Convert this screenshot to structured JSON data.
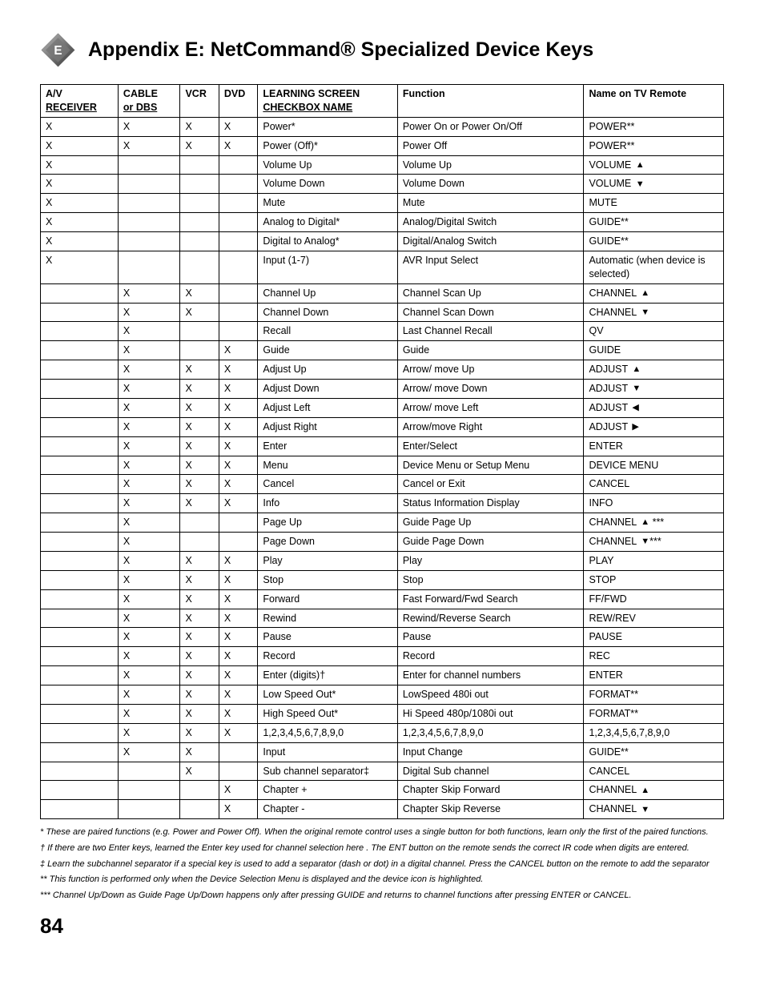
{
  "title": "Appendix E: NetCommand® Specialized Device Keys",
  "icon_letter": "E",
  "headers": {
    "av": "A/V",
    "receiver": "RECEIVER",
    "cable": "CABLE",
    "dbs": "or  DBS",
    "vcr": "VCR",
    "dvd": "DVD",
    "learn1": "LEARNING SCREEN",
    "learn2": "CHECKBOX NAME",
    "func": "Function",
    "remote": "Name on TV Remote"
  },
  "rows": [
    {
      "av": "X",
      "cable": "X",
      "vcr": "X",
      "dvd": "X",
      "learn": "Power*",
      "func": "Power On or Power On/Off",
      "remote": "POWER**"
    },
    {
      "av": "X",
      "cable": "X",
      "vcr": "X",
      "dvd": "X",
      "learn": "Power (Off)*",
      "func": "Power Off",
      "remote": "POWER**"
    },
    {
      "av": "X",
      "cable": "",
      "vcr": "",
      "dvd": "",
      "learn": "Volume Up",
      "func": "Volume Up",
      "remote": "VOLUME",
      "arrow": "up"
    },
    {
      "av": "X",
      "cable": "",
      "vcr": "",
      "dvd": "",
      "learn": "Volume Down",
      "func": "Volume Down",
      "remote": "VOLUME",
      "arrow": "down"
    },
    {
      "av": "X",
      "cable": "",
      "vcr": "",
      "dvd": "",
      "learn": "Mute",
      "func": "Mute",
      "remote": "MUTE"
    },
    {
      "av": "X",
      "cable": "",
      "vcr": "",
      "dvd": "",
      "learn": "Analog to Digital*",
      "func": "Analog/Digital Switch",
      "remote": "GUIDE**"
    },
    {
      "av": "X",
      "cable": "",
      "vcr": "",
      "dvd": "",
      "learn": "Digital to Analog*",
      "func": "Digital/Analog Switch",
      "remote": "GUIDE**"
    },
    {
      "av": "X",
      "cable": "",
      "vcr": "",
      "dvd": "",
      "learn": "Input (1-7)",
      "func": "AVR Input Select",
      "remote": "Automatic (when device is selected)"
    },
    {
      "av": "",
      "cable": "X",
      "vcr": "X",
      "dvd": "",
      "learn": "Channel Up",
      "func": "Channel Scan Up",
      "remote": "CHANNEL",
      "arrow": "up"
    },
    {
      "av": "",
      "cable": "X",
      "vcr": "X",
      "dvd": "",
      "learn": "Channel Down",
      "func": "Channel Scan Down",
      "remote": "CHANNEL",
      "arrow": "down"
    },
    {
      "av": "",
      "cable": "X",
      "vcr": "",
      "dvd": "",
      "learn": "Recall",
      "func": "Last Channel Recall",
      "remote": "QV"
    },
    {
      "av": "",
      "cable": "X",
      "vcr": "",
      "dvd": "X",
      "learn": "Guide",
      "func": "Guide",
      "remote": "GUIDE"
    },
    {
      "av": "",
      "cable": "X",
      "vcr": "X",
      "dvd": "X",
      "learn": "Adjust Up",
      "func": "Arrow/ move Up",
      "remote": "ADJUST",
      "arrow": "up"
    },
    {
      "av": "",
      "cable": "X",
      "vcr": "X",
      "dvd": "X",
      "learn": "Adjust Down",
      "func": "Arrow/ move Down",
      "remote": "ADJUST",
      "arrow": "down"
    },
    {
      "av": "",
      "cable": "X",
      "vcr": "X",
      "dvd": "X",
      "learn": "Adjust Left",
      "func": "Arrow/ move Left",
      "remote": "ADJUST",
      "arrow": "left"
    },
    {
      "av": "",
      "cable": "X",
      "vcr": "X",
      "dvd": "X",
      "learn": "Adjust Right",
      "func": "Arrow/move Right",
      "remote": "ADJUST",
      "arrow": "right"
    },
    {
      "av": "",
      "cable": "X",
      "vcr": "X",
      "dvd": "X",
      "learn": "Enter",
      "func": "Enter/Select",
      "remote": "ENTER"
    },
    {
      "av": "",
      "cable": "X",
      "vcr": "X",
      "dvd": "X",
      "learn": "Menu",
      "func": "Device Menu or Setup Menu",
      "remote": "DEVICE MENU"
    },
    {
      "av": "",
      "cable": "X",
      "vcr": "X",
      "dvd": "X",
      "learn": "Cancel",
      "func": "Cancel or Exit",
      "remote": "CANCEL"
    },
    {
      "av": "",
      "cable": "X",
      "vcr": "X",
      "dvd": "X",
      "learn": "Info",
      "func": "Status Information Display",
      "remote": "INFO"
    },
    {
      "av": "",
      "cable": "X",
      "vcr": "",
      "dvd": "",
      "learn": "Page Up",
      "func": "Guide Page Up",
      "remote": "CHANNEL",
      "arrow": "up",
      "suffix": " ***"
    },
    {
      "av": "",
      "cable": "X",
      "vcr": "",
      "dvd": "",
      "learn": "Page Down",
      "func": "Guide Page Down",
      "remote": "CHANNEL",
      "arrow": "down",
      "suffix": "***"
    },
    {
      "av": "",
      "cable": "X",
      "vcr": "X",
      "dvd": "X",
      "learn": "Play",
      "func": "Play",
      "remote": "PLAY"
    },
    {
      "av": "",
      "cable": "X",
      "vcr": "X",
      "dvd": "X",
      "learn": "Stop",
      "func": "Stop",
      "remote": "STOP"
    },
    {
      "av": "",
      "cable": "X",
      "vcr": "X",
      "dvd": "X",
      "learn": "Forward",
      "func": "Fast Forward/Fwd Search",
      "remote": "FF/FWD"
    },
    {
      "av": "",
      "cable": "X",
      "vcr": "X",
      "dvd": "X",
      "learn": "Rewind",
      "func": "Rewind/Reverse Search",
      "remote": "REW/REV"
    },
    {
      "av": "",
      "cable": "X",
      "vcr": "X",
      "dvd": "X",
      "learn": "Pause",
      "func": "Pause",
      "remote": "PAUSE"
    },
    {
      "av": "",
      "cable": "X",
      "vcr": "X",
      "dvd": "X",
      "learn": "Record",
      "func": "Record",
      "remote": "REC"
    },
    {
      "av": "",
      "cable": "X",
      "vcr": "X",
      "dvd": "X",
      "learn": "Enter (digits)†",
      "func": "Enter for channel numbers",
      "remote": "ENTER"
    },
    {
      "av": "",
      "cable": "X",
      "vcr": "X",
      "dvd": "X",
      "learn": "Low Speed Out*",
      "func": "LowSpeed 480i out",
      "remote": "FORMAT**"
    },
    {
      "av": "",
      "cable": "X",
      "vcr": "X",
      "dvd": "X",
      "learn": "High Speed Out*",
      "func": "Hi Speed 480p/1080i out",
      "remote": "FORMAT**"
    },
    {
      "av": "",
      "cable": "X",
      "vcr": "X",
      "dvd": "X",
      "learn": "1,2,3,4,5,6,7,8,9,0",
      "func": "1,2,3,4,5,6,7,8,9,0",
      "remote": "1,2,3,4,5,6,7,8,9,0"
    },
    {
      "av": "",
      "cable": "X",
      "vcr": "X",
      "dvd": "",
      "learn": "Input",
      "func": "Input Change",
      "remote": "GUIDE**"
    },
    {
      "av": "",
      "cable": "",
      "vcr": "X",
      "dvd": "",
      "learn": "Sub channel separator‡",
      "func": "Digital Sub channel",
      "remote": "CANCEL"
    },
    {
      "av": "",
      "cable": "",
      "vcr": "",
      "dvd": "X",
      "learn": "Chapter +",
      "func": "Chapter Skip Forward",
      "remote": "CHANNEL",
      "arrow": "up"
    },
    {
      "av": "",
      "cable": "",
      "vcr": "",
      "dvd": "X",
      "learn": "Chapter -",
      "func": "Chapter Skip Reverse",
      "remote": "CHANNEL",
      "arrow": "down"
    }
  ],
  "footnotes": [
    "* These are paired functions (e.g. Power and Power Off).  When the original remote control uses a single button for both functions, learn only the first of the paired functions.",
    "† If there are two Enter keys, learned the Enter key used for channel selection here .  The ENT button on the remote sends the correct IR code when digits are entered.",
    "‡ Learn the subchannel separator if a special key is used to add a separator (dash or dot) in a digital channel.  Press the CANCEL button on the remote to add the separator",
    "** This function is performed only when the Device Selection Menu is displayed and the device icon is highlighted.",
    "*** Channel Up/Down as Guide Page Up/Down happens only after pressing GUIDE and returns to channel functions after pressing  ENTER or CANCEL."
  ],
  "page_number": "84",
  "arrows": {
    "up": "▲",
    "down": "▼",
    "left": "◀",
    "right": "▶"
  }
}
